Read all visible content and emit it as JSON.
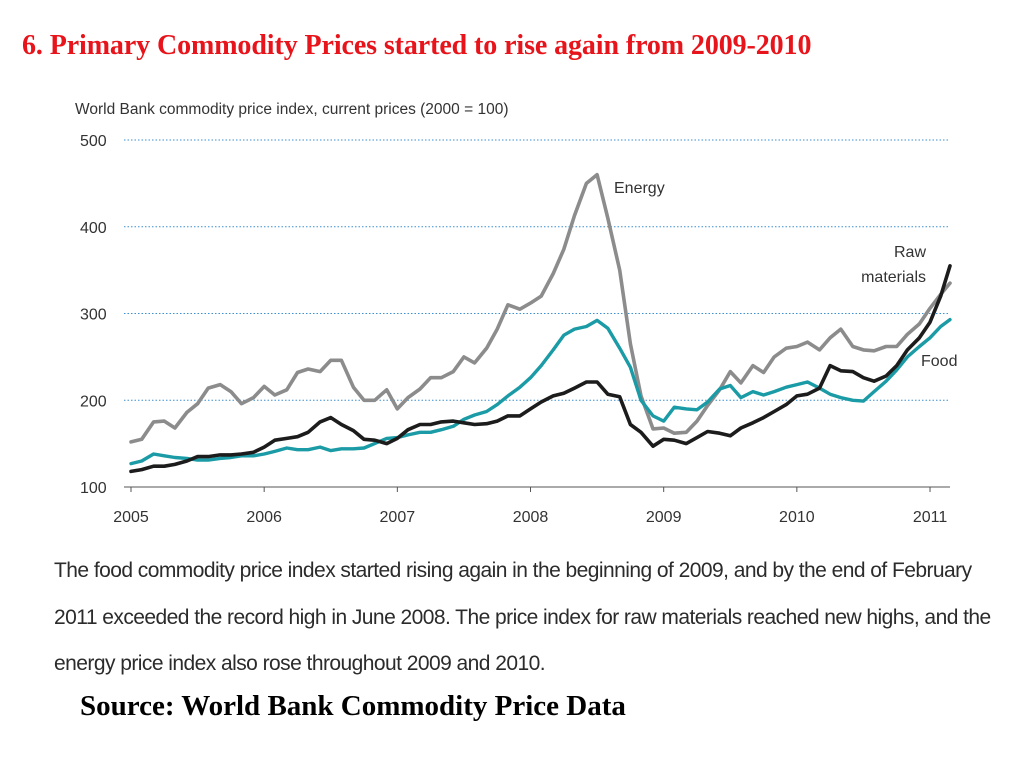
{
  "slide": {
    "title": "6. Primary Commodity Prices started to rise again from 2009-2010",
    "caption": "The food commodity price index started rising again in the beginning of 2009, and by the end of February 2011 exceeded the record high in June 2008. The price index for raw materials reached new highs, and the energy price index also rose throughout 2009 and 2010.",
    "source": "Source: World Bank Commodity Price Data"
  },
  "colors": {
    "title": "#e8141b",
    "energy": "#8c8c8c",
    "food": "#1a9ba5",
    "raw_materials": "#1c1c1c",
    "grid": "#3a8fd0"
  },
  "chart_data": {
    "type": "line",
    "title": "World Bank commodity price index, current prices (2000 = 100)",
    "xlabel": "",
    "ylabel": "",
    "xlim": [
      2005.0,
      2011.15
    ],
    "ylim": [
      100,
      500
    ],
    "yticks": [
      500,
      400,
      300,
      200,
      100
    ],
    "xticks": [
      "2005",
      "2006",
      "2007",
      "2008",
      "2009",
      "2010",
      "2011"
    ],
    "grid": "horizontal dotted",
    "legend": "inline labels",
    "series": [
      {
        "name": "Energy",
        "label_lines": [
          "Energy"
        ],
        "points": [
          [
            2005.0,
            152
          ],
          [
            2005.08,
            155
          ],
          [
            2005.17,
            175
          ],
          [
            2005.25,
            176
          ],
          [
            2005.33,
            168
          ],
          [
            2005.42,
            186
          ],
          [
            2005.5,
            196
          ],
          [
            2005.58,
            214
          ],
          [
            2005.67,
            218
          ],
          [
            2005.75,
            210
          ],
          [
            2005.83,
            196
          ],
          [
            2005.92,
            203
          ],
          [
            2006.0,
            216
          ],
          [
            2006.08,
            206
          ],
          [
            2006.17,
            212
          ],
          [
            2006.25,
            232
          ],
          [
            2006.33,
            236
          ],
          [
            2006.42,
            233
          ],
          [
            2006.5,
            246
          ],
          [
            2006.58,
            246
          ],
          [
            2006.67,
            215
          ],
          [
            2006.75,
            200
          ],
          [
            2006.83,
            200
          ],
          [
            2006.92,
            212
          ],
          [
            2007.0,
            190
          ],
          [
            2007.08,
            203
          ],
          [
            2007.17,
            213
          ],
          [
            2007.25,
            226
          ],
          [
            2007.33,
            226
          ],
          [
            2007.42,
            233
          ],
          [
            2007.5,
            250
          ],
          [
            2007.58,
            243
          ],
          [
            2007.67,
            260
          ],
          [
            2007.75,
            282
          ],
          [
            2007.83,
            310
          ],
          [
            2007.92,
            305
          ],
          [
            2008.0,
            312
          ],
          [
            2008.08,
            320
          ],
          [
            2008.17,
            346
          ],
          [
            2008.25,
            374
          ],
          [
            2008.33,
            413
          ],
          [
            2008.42,
            450
          ],
          [
            2008.5,
            460
          ],
          [
            2008.58,
            410
          ],
          [
            2008.67,
            350
          ],
          [
            2008.75,
            265
          ],
          [
            2008.83,
            205
          ],
          [
            2008.92,
            167
          ],
          [
            2009.0,
            168
          ],
          [
            2009.08,
            162
          ],
          [
            2009.17,
            163
          ],
          [
            2009.25,
            176
          ],
          [
            2009.33,
            194
          ],
          [
            2009.42,
            212
          ],
          [
            2009.5,
            233
          ],
          [
            2009.58,
            220
          ],
          [
            2009.67,
            240
          ],
          [
            2009.75,
            232
          ],
          [
            2009.83,
            250
          ],
          [
            2009.92,
            260
          ],
          [
            2010.0,
            262
          ],
          [
            2010.08,
            267
          ],
          [
            2010.17,
            258
          ],
          [
            2010.25,
            272
          ],
          [
            2010.33,
            282
          ],
          [
            2010.42,
            262
          ],
          [
            2010.5,
            258
          ],
          [
            2010.58,
            257
          ],
          [
            2010.67,
            262
          ],
          [
            2010.75,
            262
          ],
          [
            2010.83,
            276
          ],
          [
            2010.92,
            288
          ],
          [
            2011.0,
            306
          ],
          [
            2011.08,
            322
          ],
          [
            2011.15,
            335
          ]
        ]
      },
      {
        "name": "Food",
        "label_lines": [
          "Food"
        ],
        "points": [
          [
            2005.0,
            127
          ],
          [
            2005.08,
            130
          ],
          [
            2005.17,
            138
          ],
          [
            2005.25,
            136
          ],
          [
            2005.33,
            134
          ],
          [
            2005.42,
            133
          ],
          [
            2005.5,
            131
          ],
          [
            2005.58,
            131
          ],
          [
            2005.67,
            133
          ],
          [
            2005.75,
            134
          ],
          [
            2005.83,
            136
          ],
          [
            2005.92,
            136
          ],
          [
            2006.0,
            138
          ],
          [
            2006.08,
            141
          ],
          [
            2006.17,
            145
          ],
          [
            2006.25,
            143
          ],
          [
            2006.33,
            143
          ],
          [
            2006.42,
            146
          ],
          [
            2006.5,
            142
          ],
          [
            2006.58,
            144
          ],
          [
            2006.67,
            144
          ],
          [
            2006.75,
            145
          ],
          [
            2006.83,
            150
          ],
          [
            2006.92,
            156
          ],
          [
            2007.0,
            157
          ],
          [
            2007.08,
            160
          ],
          [
            2007.17,
            163
          ],
          [
            2007.25,
            163
          ],
          [
            2007.33,
            166
          ],
          [
            2007.42,
            170
          ],
          [
            2007.5,
            178
          ],
          [
            2007.58,
            183
          ],
          [
            2007.67,
            187
          ],
          [
            2007.75,
            195
          ],
          [
            2007.83,
            205
          ],
          [
            2007.92,
            215
          ],
          [
            2008.0,
            226
          ],
          [
            2008.08,
            240
          ],
          [
            2008.17,
            258
          ],
          [
            2008.25,
            275
          ],
          [
            2008.33,
            282
          ],
          [
            2008.42,
            285
          ],
          [
            2008.5,
            292
          ],
          [
            2008.58,
            283
          ],
          [
            2008.67,
            260
          ],
          [
            2008.75,
            238
          ],
          [
            2008.83,
            200
          ],
          [
            2008.92,
            182
          ],
          [
            2009.0,
            176
          ],
          [
            2009.08,
            192
          ],
          [
            2009.17,
            190
          ],
          [
            2009.25,
            189
          ],
          [
            2009.33,
            198
          ],
          [
            2009.42,
            213
          ],
          [
            2009.5,
            217
          ],
          [
            2009.58,
            203
          ],
          [
            2009.67,
            210
          ],
          [
            2009.75,
            206
          ],
          [
            2009.83,
            210
          ],
          [
            2009.92,
            215
          ],
          [
            2010.0,
            218
          ],
          [
            2010.08,
            221
          ],
          [
            2010.17,
            214
          ],
          [
            2010.25,
            207
          ],
          [
            2010.33,
            203
          ],
          [
            2010.42,
            200
          ],
          [
            2010.5,
            199
          ],
          [
            2010.58,
            210
          ],
          [
            2010.67,
            222
          ],
          [
            2010.75,
            235
          ],
          [
            2010.83,
            250
          ],
          [
            2010.92,
            262
          ],
          [
            2011.0,
            272
          ],
          [
            2011.08,
            285
          ],
          [
            2011.15,
            293
          ]
        ]
      },
      {
        "name": "Raw materials",
        "label_lines": [
          "Raw",
          "materials"
        ],
        "points": [
          [
            2005.0,
            118
          ],
          [
            2005.08,
            120
          ],
          [
            2005.17,
            124
          ],
          [
            2005.25,
            124
          ],
          [
            2005.33,
            126
          ],
          [
            2005.42,
            130
          ],
          [
            2005.5,
            135
          ],
          [
            2005.58,
            135
          ],
          [
            2005.67,
            137
          ],
          [
            2005.75,
            137
          ],
          [
            2005.83,
            138
          ],
          [
            2005.92,
            140
          ],
          [
            2006.0,
            146
          ],
          [
            2006.08,
            154
          ],
          [
            2006.17,
            156
          ],
          [
            2006.25,
            158
          ],
          [
            2006.33,
            163
          ],
          [
            2006.42,
            175
          ],
          [
            2006.5,
            180
          ],
          [
            2006.58,
            172
          ],
          [
            2006.67,
            165
          ],
          [
            2006.75,
            155
          ],
          [
            2006.83,
            154
          ],
          [
            2006.92,
            150
          ],
          [
            2007.0,
            156
          ],
          [
            2007.08,
            166
          ],
          [
            2007.17,
            172
          ],
          [
            2007.25,
            172
          ],
          [
            2007.33,
            175
          ],
          [
            2007.42,
            176
          ],
          [
            2007.5,
            174
          ],
          [
            2007.58,
            172
          ],
          [
            2007.67,
            173
          ],
          [
            2007.75,
            176
          ],
          [
            2007.83,
            182
          ],
          [
            2007.92,
            182
          ],
          [
            2008.0,
            190
          ],
          [
            2008.08,
            198
          ],
          [
            2008.17,
            205
          ],
          [
            2008.25,
            208
          ],
          [
            2008.33,
            214
          ],
          [
            2008.42,
            221
          ],
          [
            2008.5,
            221
          ],
          [
            2008.58,
            207
          ],
          [
            2008.67,
            204
          ],
          [
            2008.75,
            172
          ],
          [
            2008.83,
            163
          ],
          [
            2008.92,
            147
          ],
          [
            2009.0,
            155
          ],
          [
            2009.08,
            154
          ],
          [
            2009.17,
            150
          ],
          [
            2009.25,
            157
          ],
          [
            2009.33,
            164
          ],
          [
            2009.42,
            162
          ],
          [
            2009.5,
            159
          ],
          [
            2009.58,
            168
          ],
          [
            2009.67,
            174
          ],
          [
            2009.75,
            180
          ],
          [
            2009.83,
            187
          ],
          [
            2009.92,
            195
          ],
          [
            2010.0,
            205
          ],
          [
            2010.08,
            207
          ],
          [
            2010.17,
            214
          ],
          [
            2010.25,
            240
          ],
          [
            2010.33,
            234
          ],
          [
            2010.42,
            233
          ],
          [
            2010.5,
            226
          ],
          [
            2010.58,
            222
          ],
          [
            2010.67,
            228
          ],
          [
            2010.75,
            240
          ],
          [
            2010.83,
            258
          ],
          [
            2010.92,
            272
          ],
          [
            2011.0,
            290
          ],
          [
            2011.08,
            320
          ],
          [
            2011.15,
            355
          ]
        ]
      }
    ]
  }
}
